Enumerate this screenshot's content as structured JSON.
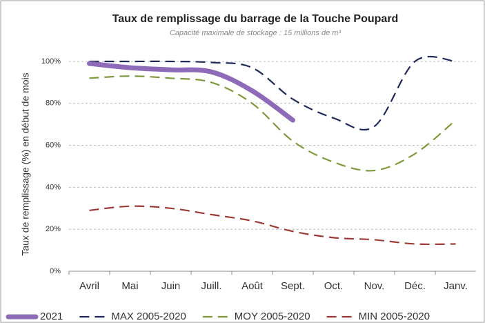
{
  "chart_data": {
    "type": "line",
    "title": "Taux de remplissage du barrage de la Touche Poupard",
    "subtitle": "Capacité maximale de stockage : 15 millions de m³",
    "y_label": "Taux de remplissage (%) en début de mois",
    "categories": [
      "Avril",
      "Mai",
      "Juin",
      "Juill.",
      "Août",
      "Sept.",
      "Oct.",
      "Nov.",
      "Déc.",
      "Janv."
    ],
    "series": [
      {
        "name": "2021",
        "color": "#8e6bb8",
        "style": "solid",
        "values": [
          99,
          97,
          96,
          95,
          86,
          72,
          null,
          null,
          null,
          null
        ]
      },
      {
        "name": "MAX 2005-2020",
        "color": "#1f2a5a",
        "style": "dashed",
        "values": [
          100,
          100,
          100,
          99.5,
          97,
          82,
          73,
          69,
          100,
          100
        ]
      },
      {
        "name": "MOY 2005-2020",
        "color": "#7d9a3a",
        "style": "dashed",
        "values": [
          92,
          93,
          92,
          90,
          80,
          62,
          52,
          48,
          56,
          72
        ]
      },
      {
        "name": "MIN 2005-2020",
        "color": "#9b3a35",
        "style": "dashed",
        "values": [
          29,
          31,
          30,
          27,
          24,
          19,
          16,
          15,
          13,
          13
        ]
      }
    ],
    "ylim": [
      0,
      100
    ],
    "yticks": [
      {
        "value": 0,
        "label": "0%"
      },
      {
        "value": 20,
        "label": "20%"
      },
      {
        "value": 40,
        "label": "40%"
      },
      {
        "value": 60,
        "label": "60%"
      },
      {
        "value": 80,
        "label": "80%"
      },
      {
        "value": 100,
        "label": "100%"
      }
    ],
    "grid": true,
    "legend": "bottom"
  }
}
